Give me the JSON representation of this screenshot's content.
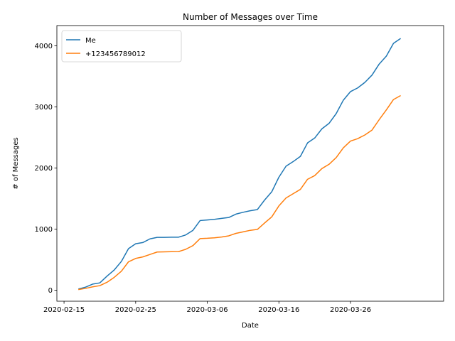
{
  "chart_data": {
    "type": "line",
    "title": "Number of Messages over Time",
    "xlabel": "Date",
    "ylabel": "# of Messages",
    "xlim": [
      "2020-02-14",
      "2020-04-08"
    ],
    "ylim": [
      -180,
      4330
    ],
    "x_ticks": [
      "2020-02-15",
      "2020-02-25",
      "2020-03-06",
      "2020-03-16",
      "2020-03-26"
    ],
    "y_ticks": [
      0,
      1000,
      2000,
      3000,
      4000
    ],
    "grid": false,
    "legend_position": "upper-left",
    "x": [
      "2020-02-17",
      "2020-02-18",
      "2020-02-19",
      "2020-02-20",
      "2020-02-21",
      "2020-02-22",
      "2020-02-23",
      "2020-02-24",
      "2020-02-25",
      "2020-02-26",
      "2020-02-27",
      "2020-02-28",
      "2020-02-29",
      "2020-03-01",
      "2020-03-02",
      "2020-03-03",
      "2020-03-04",
      "2020-03-05",
      "2020-03-06",
      "2020-03-07",
      "2020-03-08",
      "2020-03-09",
      "2020-03-10",
      "2020-03-11",
      "2020-03-12",
      "2020-03-13",
      "2020-03-14",
      "2020-03-15",
      "2020-03-16",
      "2020-03-17",
      "2020-03-18",
      "2020-03-19",
      "2020-03-20",
      "2020-03-21",
      "2020-03-22",
      "2020-03-23",
      "2020-03-24",
      "2020-03-25",
      "2020-03-26",
      "2020-03-27",
      "2020-03-28",
      "2020-03-29",
      "2020-03-30",
      "2020-03-31",
      "2020-04-01",
      "2020-04-02"
    ],
    "series": [
      {
        "name": "Me",
        "color": "#1f77b4",
        "values": [
          20,
          50,
          100,
          120,
          230,
          330,
          470,
          680,
          760,
          780,
          840,
          865,
          865,
          867,
          868,
          905,
          980,
          1140,
          1150,
          1160,
          1175,
          1190,
          1245,
          1275,
          1300,
          1320,
          1475,
          1610,
          1850,
          2030,
          2105,
          2190,
          2410,
          2490,
          2640,
          2730,
          2890,
          3110,
          3250,
          3310,
          3400,
          3520,
          3700,
          3830,
          4040,
          4120
        ]
      },
      {
        "name": "+123456789012",
        "color": "#ff7f0e",
        "values": [
          10,
          30,
          55,
          75,
          130,
          210,
          310,
          465,
          520,
          545,
          585,
          625,
          628,
          630,
          632,
          670,
          730,
          845,
          850,
          858,
          870,
          890,
          930,
          955,
          980,
          995,
          1100,
          1200,
          1380,
          1510,
          1580,
          1650,
          1815,
          1875,
          1990,
          2060,
          2170,
          2330,
          2440,
          2480,
          2540,
          2620,
          2790,
          2950,
          3120,
          3185
        ]
      }
    ]
  }
}
